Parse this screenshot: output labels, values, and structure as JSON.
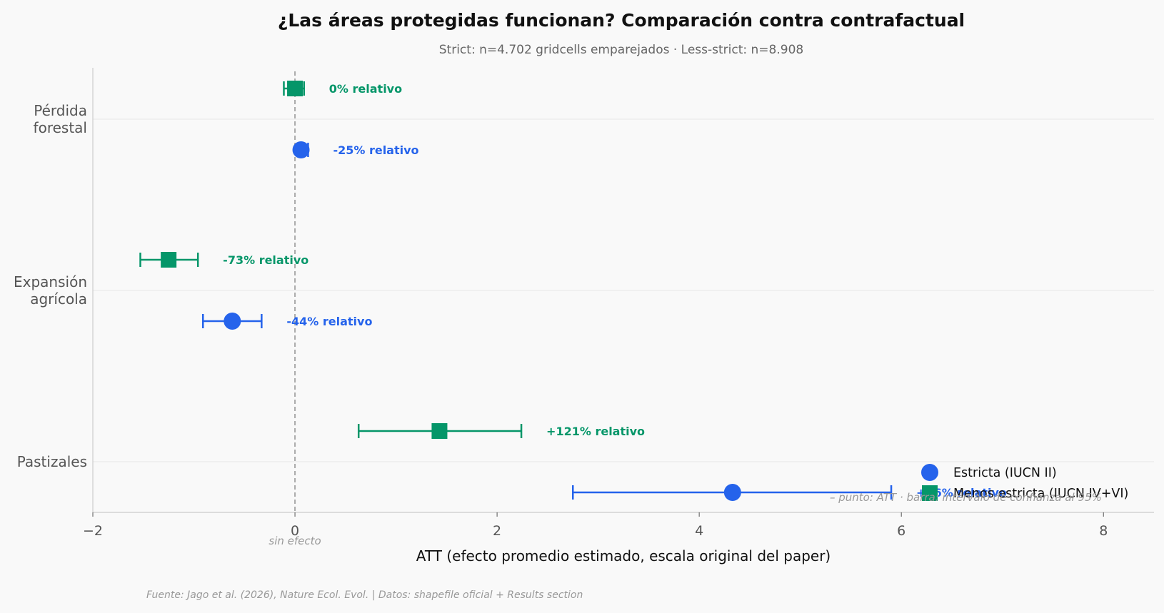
{
  "title": "¿Las áreas protegidas funcionan? Comparación contra contrafactual",
  "subtitle": "Strict: n=4.702 gridcells emparejados · Less-strict: n=8.908",
  "source": "Fuente: Jago et al. (2026), Nature Ecol. Evol. | Datos: shapefile oficial + Results section",
  "colors": {
    "strict": "#2563eb",
    "less_strict": "#059669",
    "zero_line": "#aaaaaa"
  },
  "chart_data": {
    "type": "scatter",
    "xlabel": "ATT (efecto promedio estimado, escala original del paper)",
    "xlim": [
      -2,
      8.5
    ],
    "xticks": [
      -2,
      0,
      2,
      4,
      6,
      8
    ],
    "xtick_labels": [
      "−2",
      "0",
      "2",
      "4",
      "6",
      "8"
    ],
    "zero_label": "sin efecto",
    "categories": [
      "Pérdida\nforestal",
      "Expansión\nagrícola",
      "Pastizales"
    ],
    "legend": {
      "position": "lower-right",
      "strict": "Estricta (IUCN II)",
      "less_strict": "Menos estricta (IUCN IV+VI)"
    },
    "note": "punto: ATT · barra: intervalo de confianza al 95%",
    "series": [
      {
        "name": "Estricta (IUCN II)",
        "key": "strict",
        "marker": "circle",
        "points": [
          {
            "category": "Pérdida\nforestal",
            "att": 0.06,
            "ci": [
              0.03,
              0.13
            ],
            "label": "-25% relativo"
          },
          {
            "category": "Expansión\nagrícola",
            "att": -0.62,
            "ci": [
              -0.91,
              -0.33
            ],
            "label": "-44% relativo"
          },
          {
            "category": "Pastizales",
            "att": 4.33,
            "ci": [
              2.75,
              5.9
            ],
            "label": "+86% relativo"
          }
        ]
      },
      {
        "name": "Menos estricta (IUCN IV+VI)",
        "key": "less_strict",
        "marker": "square",
        "points": [
          {
            "category": "Pérdida\nforestal",
            "att": 0.0,
            "ci": [
              -0.11,
              0.09
            ],
            "label": "0% relativo"
          },
          {
            "category": "Expansión\nagrícola",
            "att": -1.25,
            "ci": [
              -1.53,
              -0.96
            ],
            "label": "-73% relativo"
          },
          {
            "category": "Pastizales",
            "att": 1.43,
            "ci": [
              0.63,
              2.24
            ],
            "label": "+121% relativo"
          }
        ]
      }
    ]
  }
}
